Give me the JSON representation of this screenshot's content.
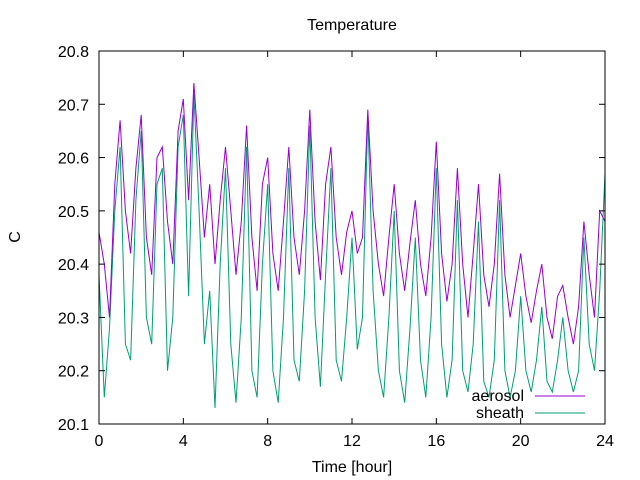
{
  "chart_data": {
    "type": "line",
    "title": "Temperature",
    "xlabel": "Time [hour]",
    "ylabel": "C",
    "xlim": [
      0,
      24
    ],
    "ylim": [
      20.1,
      20.8
    ],
    "x_ticks": [
      0,
      4,
      8,
      12,
      16,
      20,
      24
    ],
    "y_ticks": [
      20.1,
      20.2,
      20.3,
      20.4,
      20.5,
      20.6,
      20.7,
      20.8
    ],
    "x_tick_labels": [
      "0",
      "4",
      "8",
      "12",
      "16",
      "20",
      "24"
    ],
    "y_tick_labels": [
      "20.1",
      "20.2",
      "20.3",
      "20.4",
      "20.5",
      "20.6",
      "20.7",
      "20.8"
    ],
    "grid": false,
    "legend_position": "bottom-right",
    "series": [
      {
        "name": "aerosol",
        "color": "#9400d3",
        "x": [
          0,
          0.25,
          0.5,
          0.75,
          1,
          1.25,
          1.5,
          1.75,
          2,
          2.25,
          2.5,
          2.75,
          3,
          3.25,
          3.5,
          3.75,
          4,
          4.25,
          4.5,
          4.75,
          5,
          5.25,
          5.5,
          5.75,
          6,
          6.25,
          6.5,
          6.75,
          7,
          7.25,
          7.5,
          7.75,
          8,
          8.25,
          8.5,
          8.75,
          9,
          9.25,
          9.5,
          9.75,
          10,
          10.25,
          10.5,
          10.75,
          11,
          11.25,
          11.5,
          11.75,
          12,
          12.25,
          12.5,
          12.75,
          13,
          13.25,
          13.5,
          13.75,
          14,
          14.25,
          14.5,
          14.75,
          15,
          15.25,
          15.5,
          15.75,
          16,
          16.25,
          16.5,
          16.75,
          17,
          17.25,
          17.5,
          17.75,
          18,
          18.25,
          18.5,
          18.75,
          19,
          19.25,
          19.5,
          19.75,
          20,
          20.25,
          20.5,
          20.75,
          21,
          21.25,
          21.5,
          21.75,
          22,
          22.25,
          22.5,
          22.75,
          23,
          23.25,
          23.5,
          23.75,
          24
        ],
        "values": [
          20.46,
          20.4,
          20.3,
          20.55,
          20.67,
          20.5,
          20.42,
          20.58,
          20.68,
          20.45,
          20.38,
          20.6,
          20.62,
          20.48,
          20.4,
          20.65,
          20.71,
          20.52,
          20.74,
          20.6,
          20.45,
          20.55,
          20.4,
          20.52,
          20.62,
          20.5,
          20.38,
          20.48,
          20.66,
          20.45,
          20.35,
          20.55,
          20.6,
          20.42,
          20.35,
          20.48,
          20.62,
          20.45,
          20.38,
          20.5,
          20.69,
          20.48,
          20.37,
          20.55,
          20.62,
          20.45,
          20.38,
          20.46,
          20.5,
          20.42,
          20.45,
          20.69,
          20.5,
          20.4,
          20.34,
          20.45,
          20.55,
          20.42,
          20.35,
          20.44,
          20.52,
          20.4,
          20.34,
          20.45,
          20.63,
          20.42,
          20.33,
          20.4,
          20.58,
          20.4,
          20.3,
          20.42,
          20.55,
          20.38,
          20.32,
          20.4,
          20.57,
          20.38,
          20.3,
          20.36,
          20.42,
          20.34,
          20.29,
          20.35,
          20.4,
          20.3,
          20.26,
          20.34,
          20.36,
          20.3,
          20.25,
          20.32,
          20.48,
          20.38,
          20.3,
          20.5,
          20.48
        ]
      },
      {
        "name": "sheath",
        "color": "#009e73",
        "x": [
          0,
          0.25,
          0.5,
          0.75,
          1,
          1.25,
          1.5,
          1.75,
          2,
          2.25,
          2.5,
          2.75,
          3,
          3.25,
          3.5,
          3.75,
          4,
          4.25,
          4.5,
          4.75,
          5,
          5.25,
          5.5,
          5.75,
          6,
          6.25,
          6.5,
          6.75,
          7,
          7.25,
          7.5,
          7.75,
          8,
          8.25,
          8.5,
          8.75,
          9,
          9.25,
          9.5,
          9.75,
          10,
          10.25,
          10.5,
          10.75,
          11,
          11.25,
          11.5,
          11.75,
          12,
          12.25,
          12.5,
          12.75,
          13,
          13.25,
          13.5,
          13.75,
          14,
          14.25,
          14.5,
          14.75,
          15,
          15.25,
          15.5,
          15.75,
          16,
          16.25,
          16.5,
          16.75,
          17,
          17.25,
          17.5,
          17.75,
          18,
          18.25,
          18.5,
          18.75,
          19,
          19.25,
          19.5,
          19.75,
          20,
          20.25,
          20.5,
          20.75,
          21,
          21.25,
          21.5,
          21.75,
          22,
          22.25,
          22.5,
          22.75,
          23,
          23.25,
          23.5,
          23.75,
          24
        ],
        "values": [
          20.38,
          20.15,
          20.28,
          20.5,
          20.62,
          20.25,
          20.22,
          20.52,
          20.65,
          20.3,
          20.25,
          20.55,
          20.58,
          20.2,
          20.3,
          20.62,
          20.68,
          20.34,
          20.72,
          20.5,
          20.25,
          20.35,
          20.13,
          20.4,
          20.58,
          20.25,
          20.14,
          20.3,
          20.62,
          20.2,
          20.15,
          20.4,
          20.55,
          20.2,
          20.14,
          20.3,
          20.58,
          20.22,
          20.18,
          20.35,
          20.66,
          20.3,
          20.17,
          20.38,
          20.58,
          20.22,
          20.18,
          20.3,
          20.45,
          20.24,
          20.3,
          20.68,
          20.35,
          20.2,
          20.15,
          20.3,
          20.5,
          20.2,
          20.14,
          20.28,
          20.45,
          20.22,
          20.15,
          20.3,
          20.58,
          20.25,
          20.15,
          20.22,
          20.52,
          20.2,
          20.16,
          20.25,
          20.48,
          20.18,
          20.15,
          20.22,
          20.52,
          20.2,
          20.15,
          20.2,
          20.34,
          20.2,
          20.16,
          20.22,
          20.32,
          20.18,
          20.16,
          20.22,
          20.3,
          20.2,
          20.16,
          20.2,
          20.45,
          20.25,
          20.2,
          20.35,
          20.57
        ]
      }
    ]
  }
}
